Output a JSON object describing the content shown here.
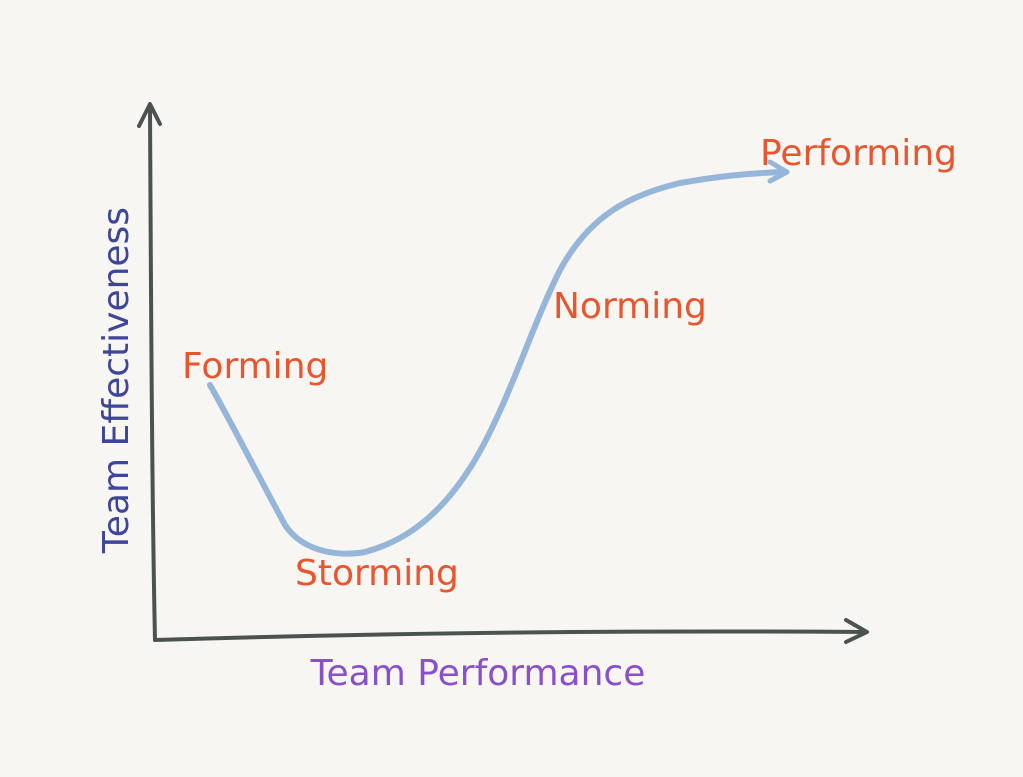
{
  "diagram": {
    "y_axis_label": "Team Effectiveness",
    "x_axis_label": "Team Performance",
    "stages": [
      {
        "label": "Forming"
      },
      {
        "label": "Storming"
      },
      {
        "label": "Norming"
      },
      {
        "label": "Performing"
      }
    ]
  },
  "colors": {
    "background": "#f7f6f2",
    "axis": "#4b5350",
    "curve": "#95b5d9",
    "stage_label": "#e9552d",
    "y_axis_label": "#3d4698",
    "x_axis_label": "#8a4fcb"
  }
}
